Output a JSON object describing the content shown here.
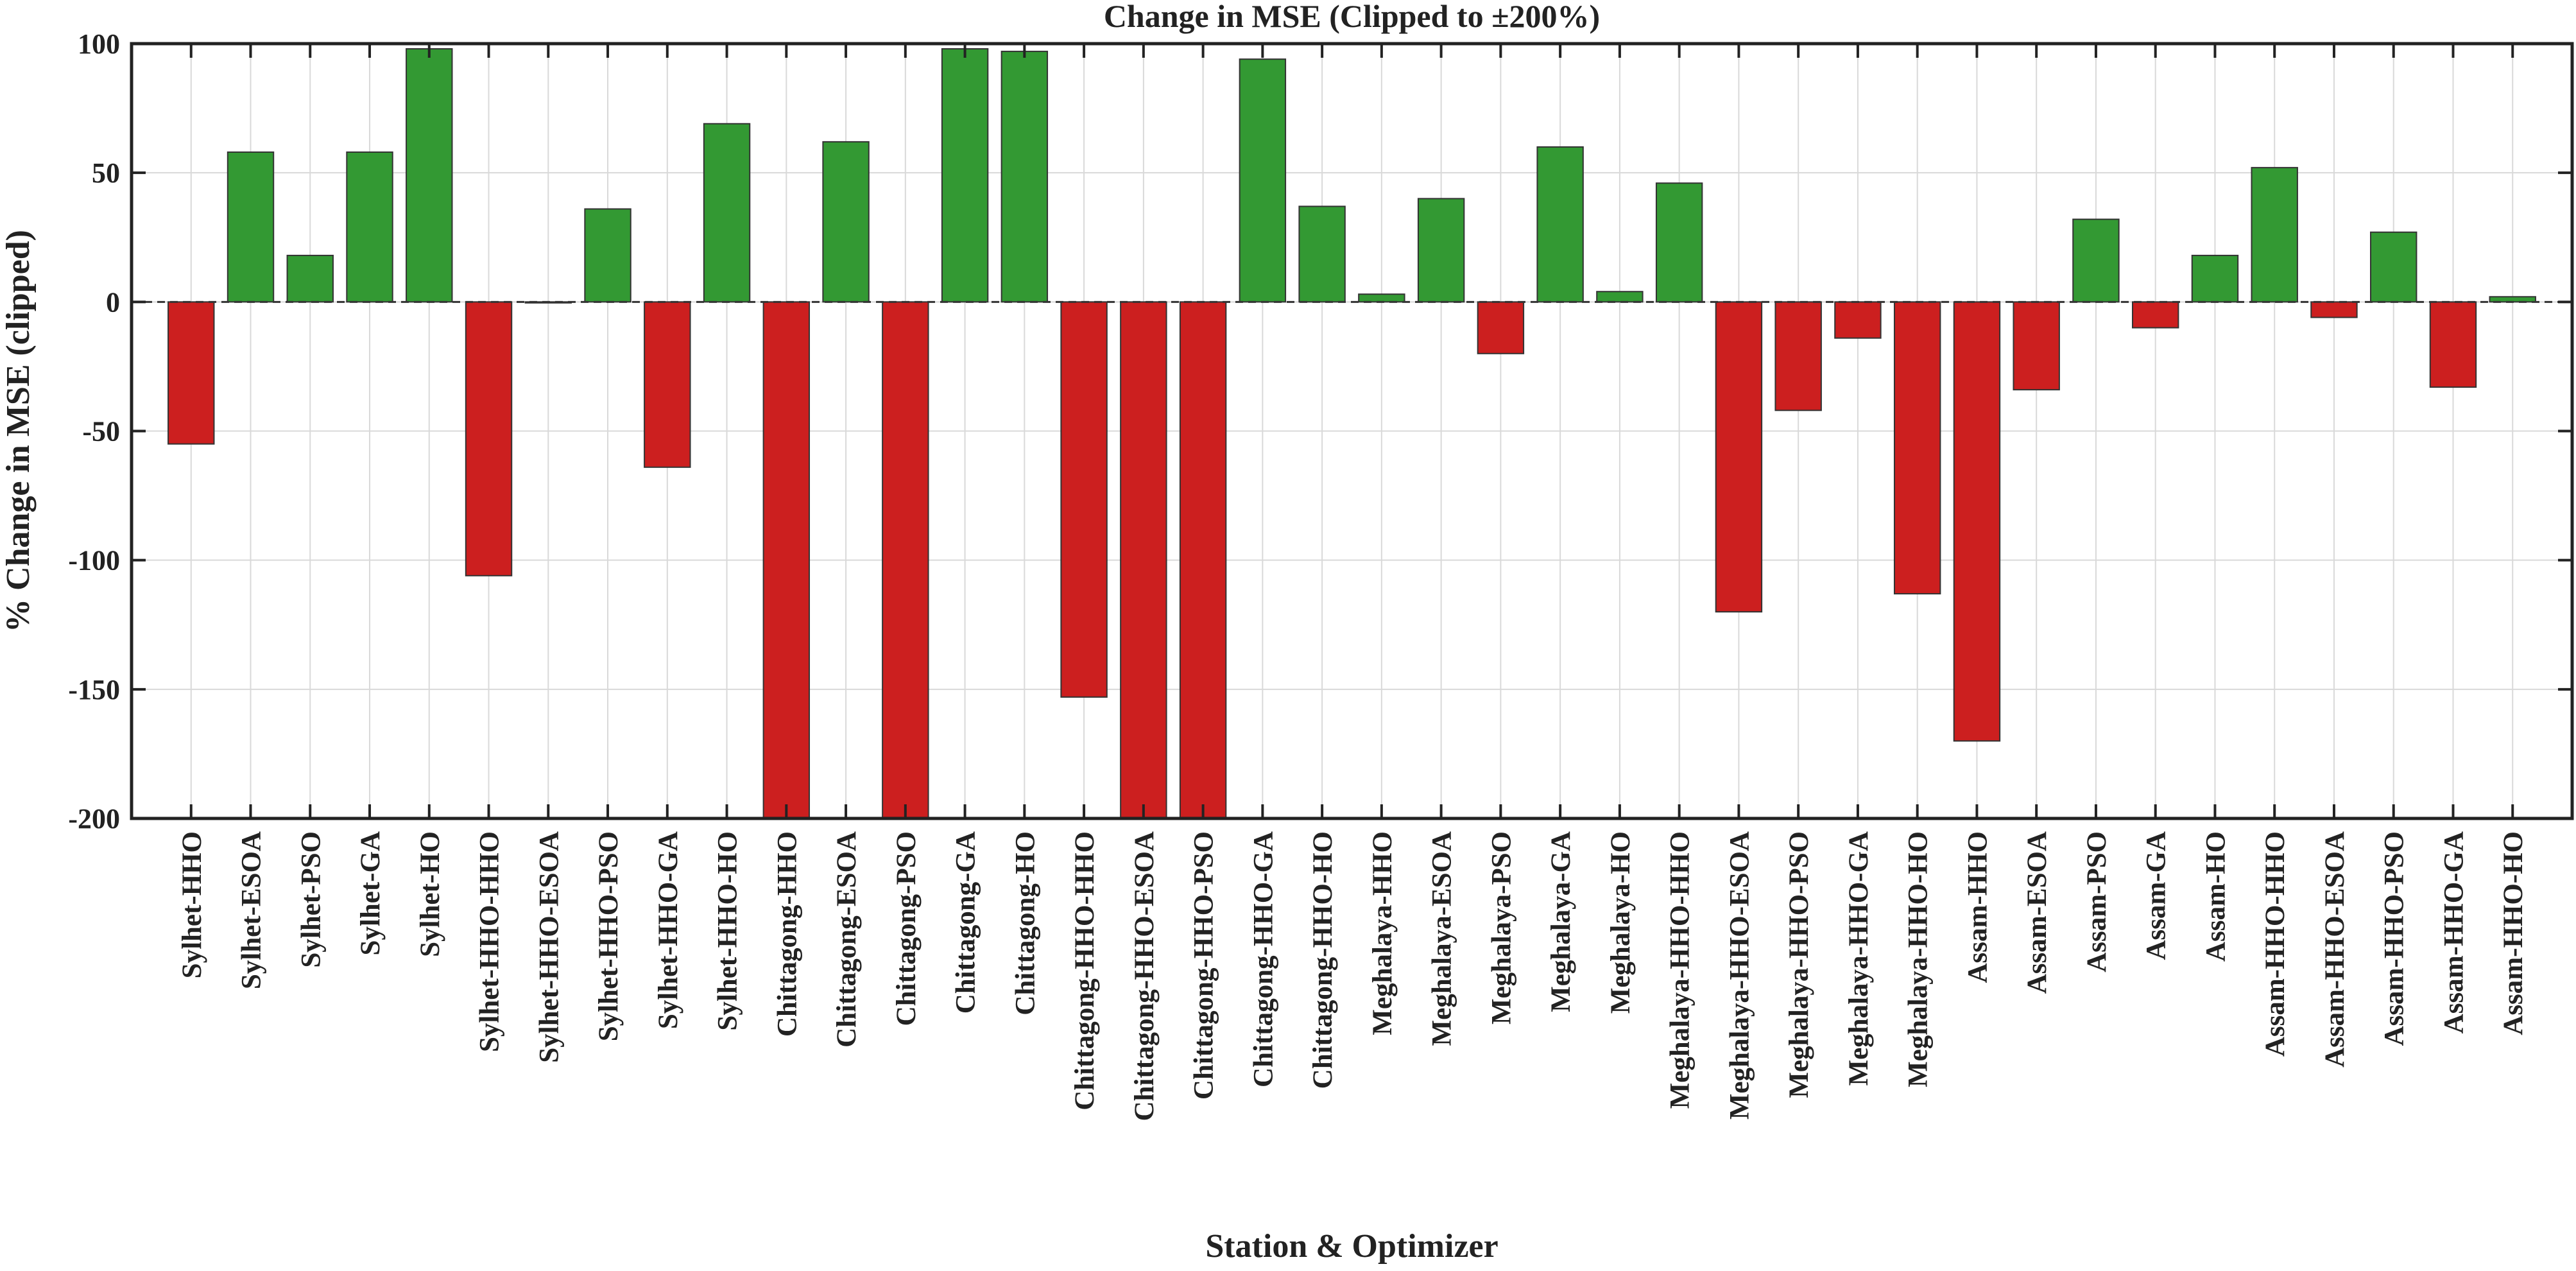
{
  "chart_data": {
    "type": "bar",
    "title": "Change in MSE  (Clipped to ±200%)",
    "xlabel": "Station & Optimizer",
    "ylabel": "% Change in MSE (clipped)",
    "ylim": [
      -200,
      100
    ],
    "yticks": [
      100,
      50,
      0,
      -50,
      -100,
      -150,
      -200
    ],
    "grid": true,
    "colors": {
      "positive": "#339933",
      "negative": "#cc1f1f",
      "edge": "#333333",
      "grid": "#d9d9d9",
      "axis": "#222222"
    },
    "categories": [
      "Sylhet-HHO",
      "Sylhet-ESOA",
      "Sylhet-PSO",
      "Sylhet-GA",
      "Sylhet-HO",
      "Sylhet-HHO-HHO",
      "Sylhet-HHO-ESOA",
      "Sylhet-HHO-PSO",
      "Sylhet-HHO-GA",
      "Sylhet-HHO-HO",
      "Chittagong-HHO",
      "Chittagong-ESOA",
      "Chittagong-PSO",
      "Chittagong-GA",
      "Chittagong-HO",
      "Chittagong-HHO-HHO",
      "Chittagong-HHO-ESOA",
      "Chittagong-HHO-PSO",
      "Chittagong-HHO-GA",
      "Chittagong-HHO-HO",
      "Meghalaya-HHO",
      "Meghalaya-ESOA",
      "Meghalaya-PSO",
      "Meghalaya-GA",
      "Meghalaya-HO",
      "Meghalaya-HHO-HHO",
      "Meghalaya-HHO-ESOA",
      "Meghalaya-HHO-PSO",
      "Meghalaya-HHO-GA",
      "Meghalaya-HHO-HO",
      "Assam-HHO",
      "Assam-ESOA",
      "Assam-PSO",
      "Assam-GA",
      "Assam-HO",
      "Assam-HHO-HHO",
      "Assam-HHO-ESOA",
      "Assam-HHO-PSO",
      "Assam-HHO-GA",
      "Assam-HHO-HO"
    ],
    "values": [
      -55,
      58,
      18,
      58,
      98,
      -106,
      0,
      36,
      -64,
      69,
      -200,
      62,
      -200,
      98,
      97,
      -153,
      -200,
      -200,
      94,
      37,
      3,
      40,
      -20,
      60,
      4,
      46,
      -120,
      -42,
      -14,
      -113,
      -170,
      -34,
      32,
      -10,
      18,
      52,
      -6,
      27,
      -33,
      2
    ]
  }
}
